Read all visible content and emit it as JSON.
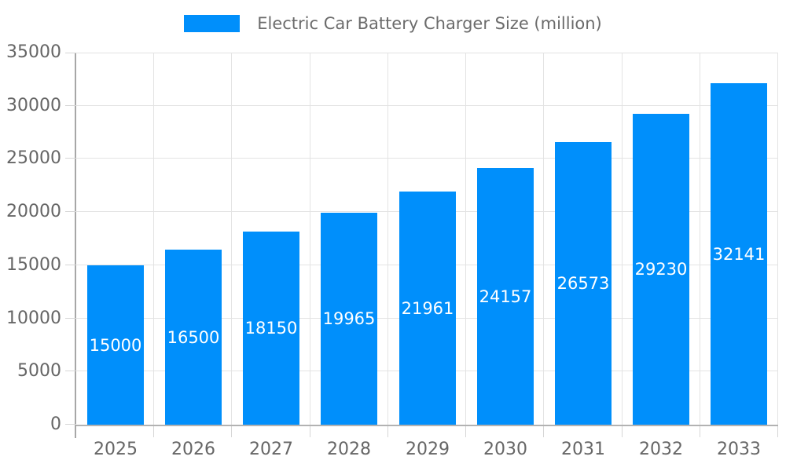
{
  "chart_data": {
    "type": "bar",
    "series_name": "Electric Car Battery Charger Size (million)",
    "legend_position": "top",
    "categories": [
      "2025",
      "2026",
      "2027",
      "2028",
      "2029",
      "2030",
      "2031",
      "2032",
      "2033"
    ],
    "values": [
      15000,
      16500,
      18150,
      19965,
      21961,
      24157,
      26573,
      29230,
      32141
    ],
    "data_labels": [
      "15000",
      "16500",
      "18150",
      "19965",
      "21961",
      "24157",
      "26573",
      "29230",
      "32141"
    ],
    "xlabel": "",
    "ylabel": "",
    "ylim": [
      0,
      35000
    ],
    "yticks": [
      0,
      5000,
      10000,
      15000,
      20000,
      25000,
      30000,
      35000
    ],
    "ytick_labels": [
      "0",
      "5000",
      "10000",
      "15000",
      "20000",
      "25000",
      "30000",
      "35000"
    ],
    "grid": true,
    "colors": {
      "bar": "#008FFB",
      "grid": "#e3e3e3",
      "axis_line": "#a7a7a7",
      "axis_line_x": "#b2b2b2",
      "tick": "#d6d6d6",
      "axis_text": "#666666",
      "legend_text": "#6b6b6b",
      "data_label_text": "#ffffff"
    }
  }
}
